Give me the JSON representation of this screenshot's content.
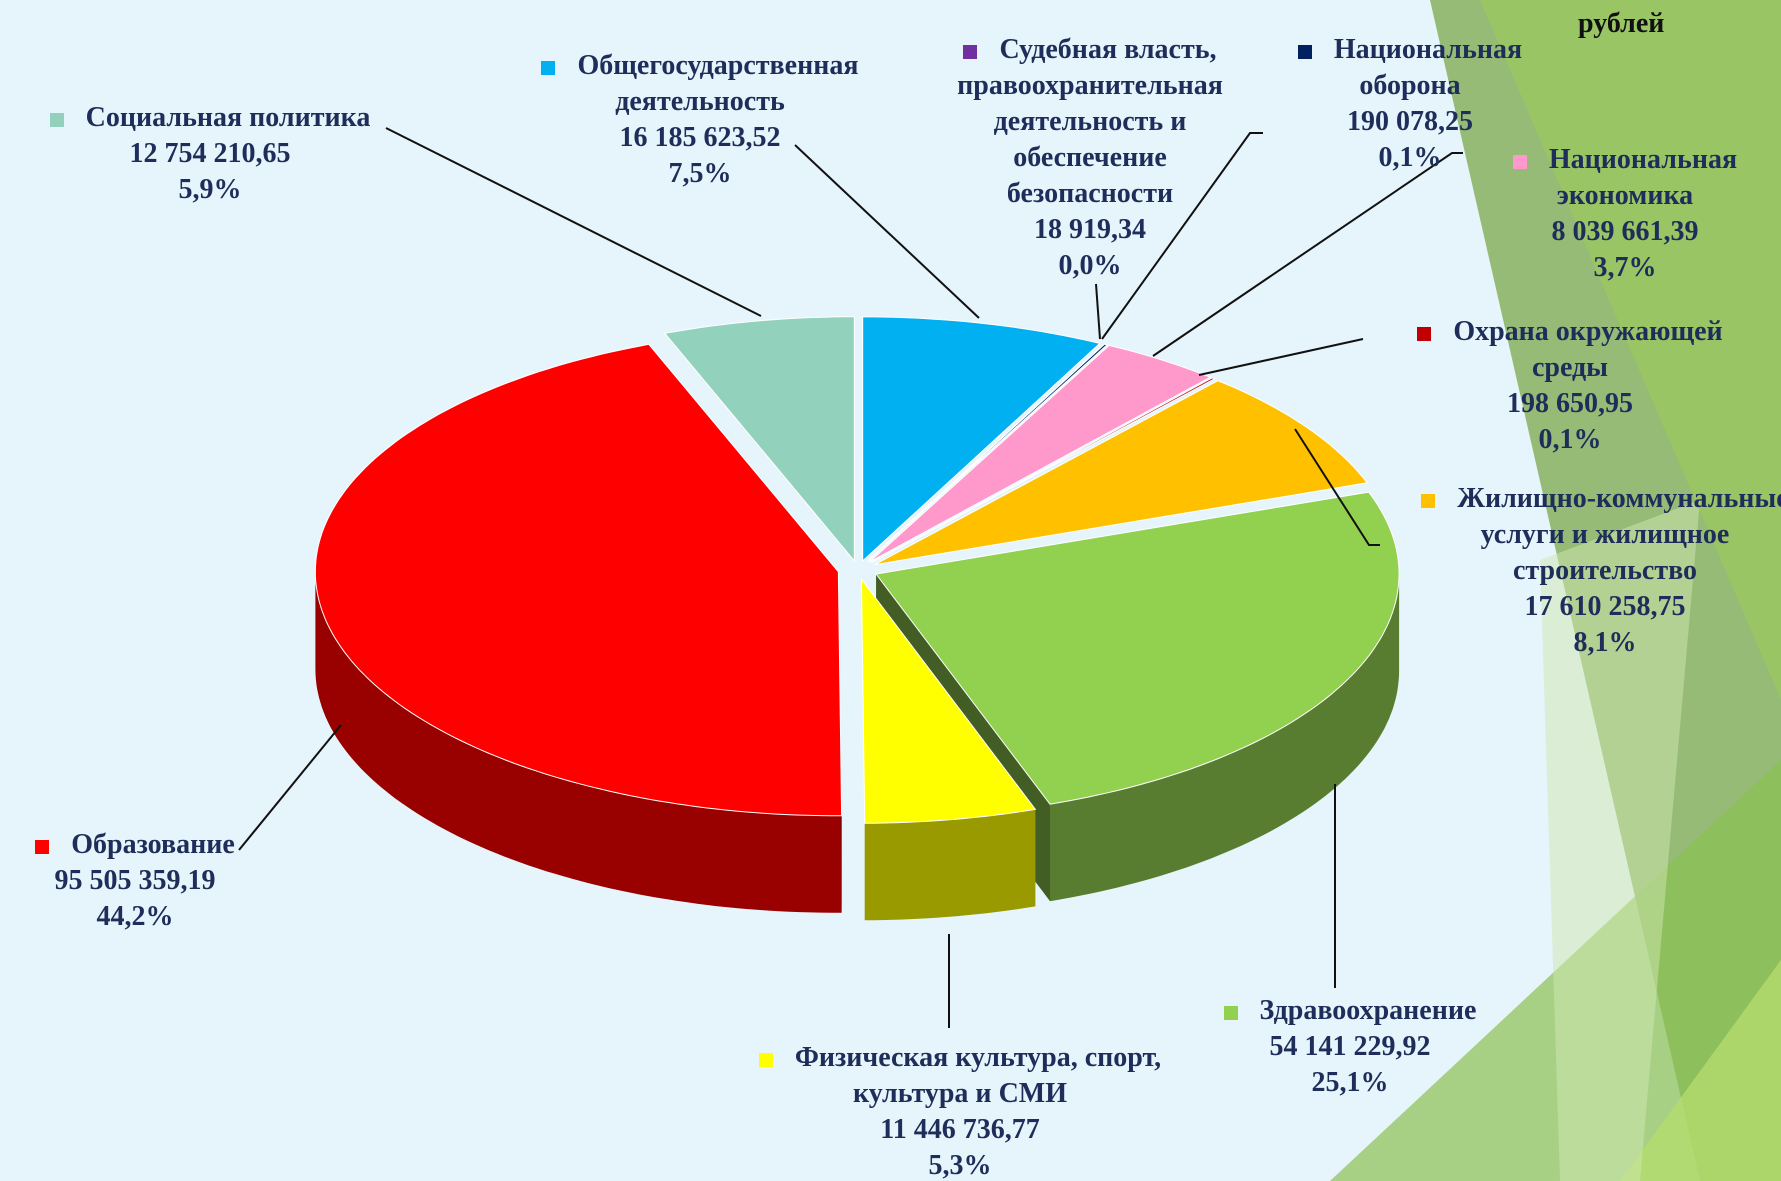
{
  "chart_data": {
    "type": "pie",
    "unit_label": "рублей",
    "categories": [
      "Общегосударственная деятельность",
      "Судебная власть, правоохранительная деятельность и обеспечение безопасности",
      "Национальная оборона",
      "Национальная экономика",
      "Охрана окружающей среды",
      "Жилищно-коммунальные услуги и жилищное строительство",
      "Здравоохранение",
      "Физическая культура, спорт, культура и СМИ",
      "Образование",
      "Социальная политика"
    ],
    "values": [
      16185623.52,
      18919.34,
      190078.25,
      8039661.39,
      198650.95,
      17610258.75,
      54141229.92,
      11446736.77,
      95505359.19,
      12754210.65
    ],
    "value_labels": [
      "16 185 623,52",
      "18 919,34",
      "190 078,25",
      "8 039 661,39",
      "198 650,95",
      "17 610 258,75",
      "54 141 229,92",
      "11 446 736,77",
      "95 505 359,19",
      "12 754 210,65"
    ],
    "percents": [
      7.5,
      0.0,
      0.1,
      3.7,
      0.1,
      8.1,
      25.1,
      5.3,
      44.2,
      5.9
    ],
    "percent_labels": [
      "7,5%",
      "0,0%",
      "0,1%",
      "3,7%",
      "0,1%",
      "8,1%",
      "25,1%",
      "5,3%",
      "44,2%",
      "5,9%"
    ],
    "colors": [
      "#00b0f0",
      "#7030a0",
      "#002060",
      "#ff99cc",
      "#c00000",
      "#ffc000",
      "#92d050",
      "#ffff00",
      "#ff0000",
      "#92d1bb"
    ]
  }
}
